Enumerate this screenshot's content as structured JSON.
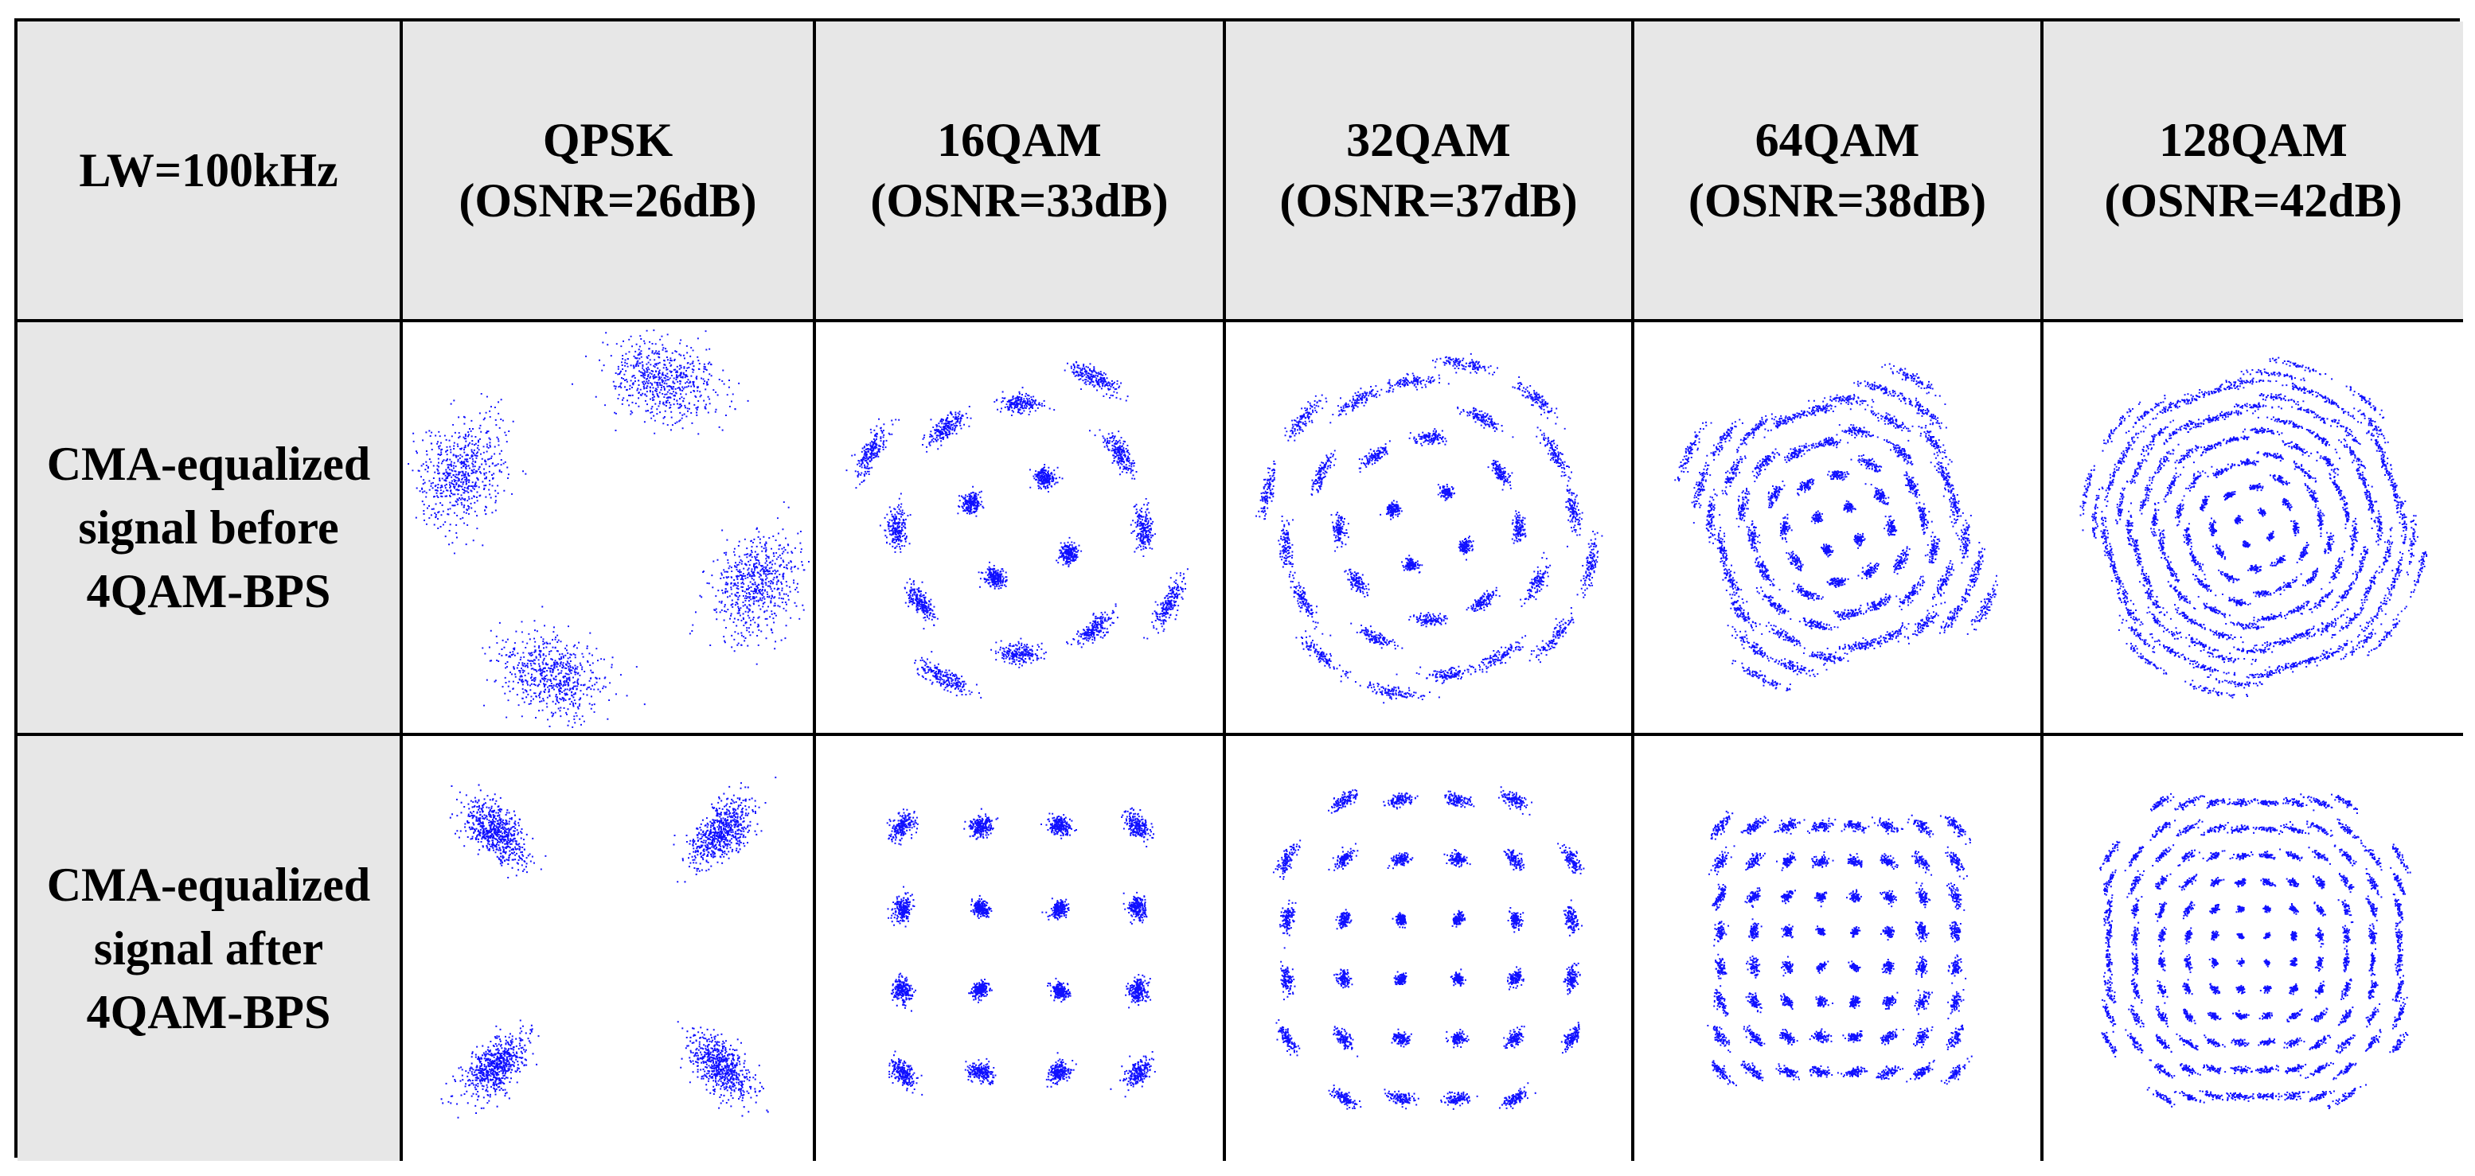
{
  "table": {
    "corner_label": "LW=100kHz",
    "columns": [
      {
        "format": "QPSK",
        "osnr": "(OSNR=26dB)",
        "order": 4
      },
      {
        "format": "16QAM",
        "osnr": "(OSNR=33dB)",
        "order": 16
      },
      {
        "format": "32QAM",
        "osnr": "(OSNR=37dB)",
        "order": 32
      },
      {
        "format": "64QAM",
        "osnr": "(OSNR=38dB)",
        "order": 64
      },
      {
        "format": "128QAM",
        "osnr": "(OSNR=42dB)",
        "order": 128
      }
    ],
    "rows": [
      {
        "lines": [
          "CMA-equalized",
          "signal before",
          "4QAM-BPS"
        ],
        "state": "before"
      },
      {
        "lines": [
          "CMA-equalized",
          "signal after",
          "4QAM-BPS"
        ],
        "state": "after"
      }
    ]
  },
  "colors": {
    "point": "#1010ff",
    "header_bg": "#e7e7e7",
    "border": "#000000"
  }
}
